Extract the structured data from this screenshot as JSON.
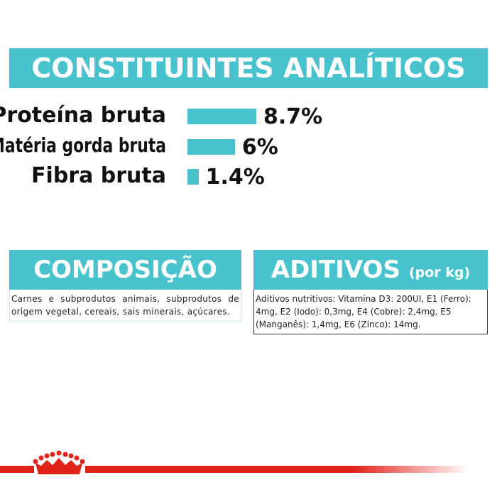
{
  "analytics": {
    "title": "CONSTITUINTES ANALÍTICOS",
    "items": [
      {
        "label": "Proteína bruta",
        "value": 8.7,
        "value_label": "8.7%"
      },
      {
        "label": "Matéria gorda bruta",
        "value": 6,
        "value_label": "6%"
      },
      {
        "label": "Fibra bruta",
        "value": 1.4,
        "value_label": "1.4%"
      }
    ]
  },
  "composition": {
    "title": "COMPOSIÇÃO",
    "text": "Carnes e subprodutos animais, subprodutos de origem vegetal, cereais, sais minerais, açúcares."
  },
  "additives": {
    "title": "ADITIVOS",
    "unit": "(por kg)",
    "text": "Aditivos nutritivos: Vitamina D3: 200UI, E1 (Ferro): 4mg, E2 (Iodo): 0,3mg, E4 (Cobre): 2,4mg, E5 (Manganês): 1,4mg, E6 (Zinco): 14mg."
  }
}
